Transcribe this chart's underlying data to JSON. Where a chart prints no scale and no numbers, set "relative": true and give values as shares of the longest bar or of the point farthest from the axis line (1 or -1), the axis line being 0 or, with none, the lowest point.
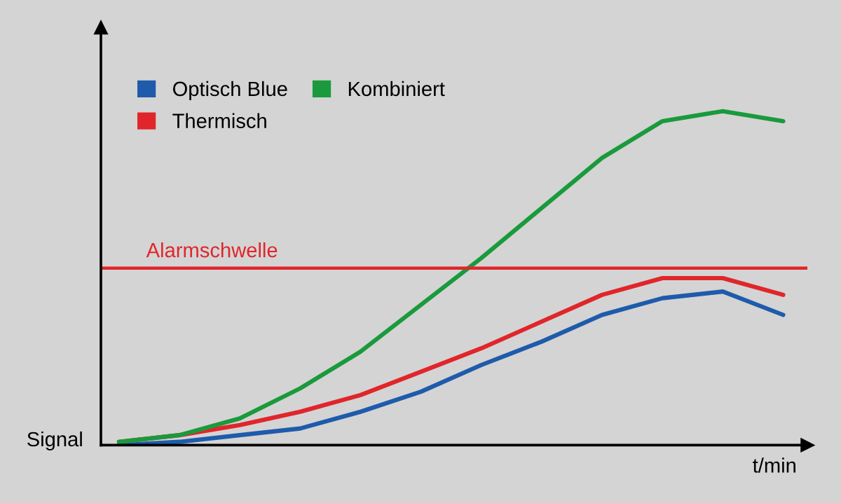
{
  "chart_data": {
    "type": "line",
    "relative": true,
    "xlabel": "t/min",
    "ylabel": "Signal",
    "tick_labels": false,
    "legend": "top left",
    "marker": "none",
    "line_style": "solid",
    "categories": [
      null,
      null,
      null,
      null,
      null,
      null,
      null,
      null,
      null,
      null,
      null,
      null
    ],
    "series": [
      {
        "name": "Optisch Blue",
        "color": "#1f5bab",
        "values": [
          0.0,
          0.01,
          0.03,
          0.05,
          0.1,
          0.16,
          0.24,
          0.31,
          0.39,
          0.44,
          0.46,
          0.39
        ]
      },
      {
        "name": "Thermisch",
        "color": "#e0262a",
        "values": [
          0.01,
          0.03,
          0.06,
          0.1,
          0.15,
          0.22,
          0.29,
          0.37,
          0.45,
          0.5,
          0.5,
          0.45
        ]
      },
      {
        "name": "Kombiniert",
        "color": "#1a9a3c",
        "values": [
          0.01,
          0.03,
          0.08,
          0.17,
          0.28,
          0.42,
          0.56,
          0.71,
          0.86,
          0.97,
          1.0,
          0.97
        ]
      }
    ],
    "ref_lines": [
      {
        "axis": "y",
        "value": 0.53,
        "label": "Alarmschwelle",
        "color": "#e0262a",
        "line_style": "solid"
      }
    ]
  }
}
